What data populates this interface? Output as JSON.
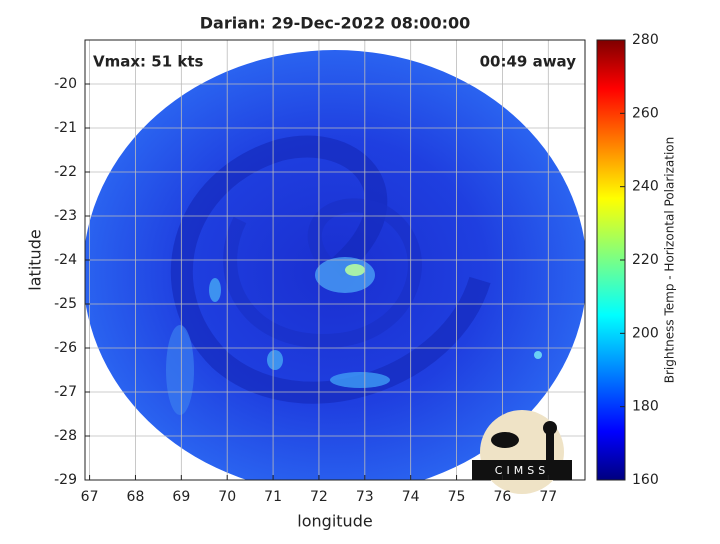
{
  "chart_data": {
    "type": "image",
    "title": "Darian: 29-Dec-2022 08:00:00",
    "annotations": [
      "Vmax: 51 kts",
      "00:49 away"
    ],
    "xlabel": "longitude",
    "ylabel": "latitude",
    "xlim": [
      66.9,
      77.8
    ],
    "xticks": [
      67,
      68,
      69,
      70,
      71,
      72,
      73,
      74,
      75,
      76,
      77
    ],
    "ylim": [
      -29,
      -19
    ],
    "yticks": [
      -20,
      -21,
      -22,
      -23,
      -24,
      -25,
      -26,
      -27,
      -28,
      -29
    ],
    "grid": true,
    "colorbar": {
      "label": "Brightness Temp - Horizontal Polarization",
      "lim": [
        160,
        280
      ],
      "ticks": [
        160,
        180,
        200,
        220,
        240,
        260,
        280
      ],
      "colormap": "jet"
    },
    "logo": "CIMSS"
  }
}
